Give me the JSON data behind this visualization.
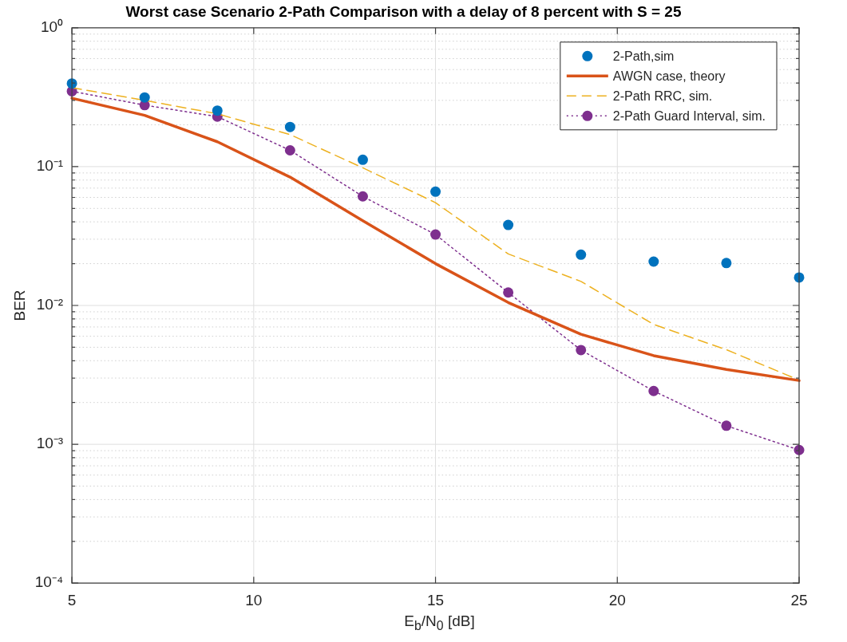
{
  "chart_data": {
    "type": "line",
    "title": "Worst case Scenario 2-Path Comparison with a delay of 8 percent with S = 25",
    "xlabel": "E$_{b}$/N$_{0}$ [dB]",
    "ylabel": "BER",
    "x": [
      5,
      7,
      9,
      11,
      13,
      15,
      17,
      19,
      21,
      23,
      25
    ],
    "series": [
      {
        "type": "scatter",
        "name": "2-Path,sim",
        "color": "#0072bd",
        "marker": "circle",
        "values": [
          0.397,
          0.315,
          0.253,
          0.193,
          0.112,
          0.066,
          0.038,
          0.0232,
          0.0207,
          0.0202,
          0.0159
        ]
      },
      {
        "type": "line",
        "name": "AWGN case, theory",
        "color": "#d95319",
        "marker": "none",
        "line_style": "solid",
        "values": [
          0.311,
          0.234,
          0.151,
          0.084,
          0.0408,
          0.02,
          0.0105,
          0.0062,
          0.00435,
          0.00346,
          0.00288
        ]
      },
      {
        "type": "line",
        "name": "2-Path RRC, sim.",
        "color": "#edb120",
        "marker": "none",
        "line_style": "dashed",
        "values": [
          0.37,
          0.3,
          0.24,
          0.17,
          0.098,
          0.055,
          0.0235,
          0.0149,
          0.0073,
          0.0048,
          0.0029
        ]
      },
      {
        "type": "line",
        "name": "2-Path Guard Interval, sim.",
        "color": "#7e2f8e",
        "marker": "circle",
        "line_style": "dotted",
        "values": [
          0.349,
          0.277,
          0.229,
          0.131,
          0.061,
          0.0324,
          0.0124,
          0.00477,
          0.00242,
          0.00136,
          0.00091
        ]
      }
    ],
    "log": "y",
    "xlim": [
      5,
      25
    ],
    "xticks": [
      5,
      10,
      15,
      20,
      25
    ],
    "ylim": [
      0.0001,
      1
    ],
    "yticks": [
      {
        "value": 0.0001,
        "label": "10⁻⁴"
      },
      {
        "value": 0.0002,
        "label": null
      },
      {
        "value": 0.0003,
        "label": null
      },
      {
        "value": 0.0004,
        "label": null
      },
      {
        "value": 0.0005,
        "label": null
      },
      {
        "value": 0.0006,
        "label": null
      },
      {
        "value": 0.0007,
        "label": null
      },
      {
        "value": 0.0008,
        "label": null
      },
      {
        "value": 0.0009,
        "label": null
      },
      {
        "value": 0.001,
        "label": "10⁻³"
      },
      {
        "value": 0.002,
        "label": null
      },
      {
        "value": 0.003,
        "label": null
      },
      {
        "value": 0.004,
        "label": null
      },
      {
        "value": 0.005,
        "label": null
      },
      {
        "value": 0.006,
        "label": null
      },
      {
        "value": 0.007,
        "label": null
      },
      {
        "value": 0.008,
        "label": null
      },
      {
        "value": 0.009,
        "label": null
      },
      {
        "value": 0.01,
        "label": "10⁻²"
      },
      {
        "value": 0.02,
        "label": null
      },
      {
        "value": 0.03,
        "label": null
      },
      {
        "value": 0.04,
        "label": null
      },
      {
        "value": 0.05,
        "label": null
      },
      {
        "value": 0.06,
        "label": null
      },
      {
        "value": 0.07,
        "label": null
      },
      {
        "value": 0.08,
        "label": null
      },
      {
        "value": 0.09,
        "label": null
      },
      {
        "value": 0.1,
        "label": "10⁻¹"
      },
      {
        "value": 0.2,
        "label": null
      },
      {
        "value": 0.3,
        "label": null
      },
      {
        "value": 0.4,
        "label": null
      },
      {
        "value": 0.5,
        "label": null
      },
      {
        "value": 0.6,
        "label": null
      },
      {
        "value": 0.7,
        "label": null
      },
      {
        "value": 0.8,
        "label": null
      },
      {
        "value": 0.9,
        "label": null
      },
      {
        "value": 1,
        "label": "10⁰"
      }
    ],
    "grid": true,
    "legend": "top right"
  }
}
